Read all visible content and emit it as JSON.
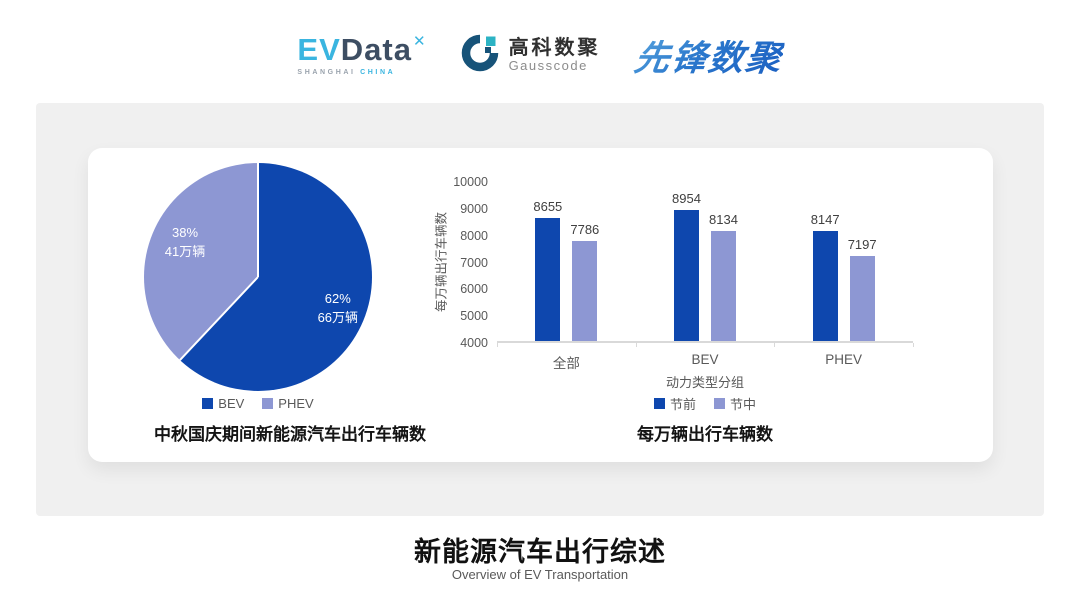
{
  "header": {
    "logos": {
      "evdata": {
        "ev": "EV",
        "data": "Data",
        "mark": "✕",
        "sub_left": "SHANGHAI",
        "sub_right": "CHINA"
      },
      "gausscode": {
        "cn": "高科数聚",
        "en": "Gausscode"
      },
      "pioneer": {
        "text": "先锋数聚"
      }
    }
  },
  "colors": {
    "primary_blue": "#0e47ae",
    "secondary_periwinkle": "#8d97d3",
    "band_gray": "#f0f0f0",
    "axis_gray": "#d9d9d9",
    "text_gray": "#595959"
  },
  "footer": {
    "title": "新能源汽车出行综述",
    "subtitle": "Overview of EV Transportation"
  },
  "chart_data": [
    {
      "type": "pie",
      "title": "中秋国庆期间新能源汽车出行车辆数",
      "slices": [
        {
          "label": "BEV",
          "percent": 62,
          "percent_label": "62%",
          "value_label": "66万辆",
          "color": "#0e47ae"
        },
        {
          "label": "PHEV",
          "percent": 38,
          "percent_label": "38%",
          "value_label": "41万辆",
          "color": "#8d97d3"
        }
      ],
      "legend": [
        "BEV",
        "PHEV"
      ],
      "legend_position": "bottom",
      "start_angle_deg": 0,
      "direction": "clockwise"
    },
    {
      "type": "bar",
      "title": "每万辆出行车辆数",
      "categories": [
        "全部",
        "BEV",
        "PHEV"
      ],
      "series": [
        {
          "name": "节前",
          "values": [
            8655,
            8954,
            8147
          ],
          "color": "#0e47ae"
        },
        {
          "name": "节中",
          "values": [
            7786,
            8134,
            7197
          ],
          "color": "#8d97d3"
        }
      ],
      "xlabel": "动力类型分组",
      "ylabel": "每万辆出行车辆数",
      "ylim": [
        4000,
        10000
      ],
      "ytick_step": 1000,
      "grid": false,
      "legend_position": "bottom"
    }
  ]
}
